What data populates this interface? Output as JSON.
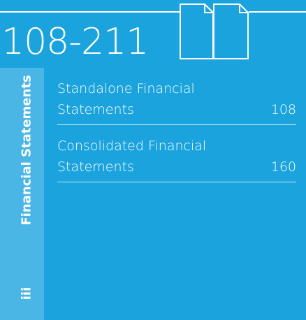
{
  "header": {
    "range": "108-211"
  },
  "sidebar": {
    "label": "Financial Statements",
    "section": "iii"
  },
  "entries": [
    {
      "title_lines": [
        "Standalone Financial",
        "Statements"
      ],
      "page": "108"
    },
    {
      "title_lines": [
        "Consolidated Financial",
        "Statements"
      ],
      "page": "160"
    }
  ]
}
